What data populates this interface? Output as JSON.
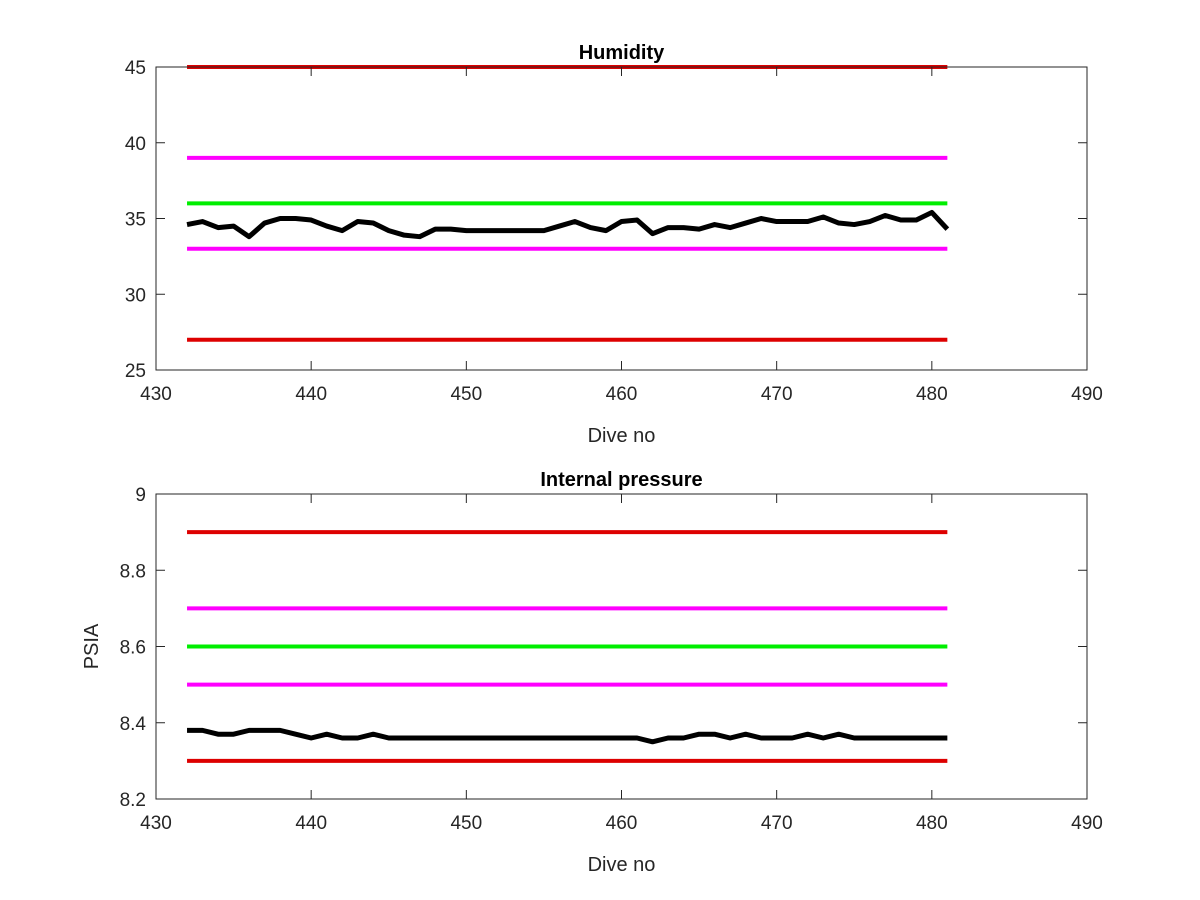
{
  "chart_data": [
    {
      "type": "line",
      "title": "Humidity",
      "xlabel": "Dive no",
      "ylabel": "",
      "xlim": [
        430,
        490
      ],
      "ylim": [
        25,
        45
      ],
      "xticks": [
        "430",
        "440",
        "450",
        "460",
        "470",
        "480",
        "490"
      ],
      "yticks": [
        "25",
        "30",
        "35",
        "40",
        "45"
      ],
      "grid": false,
      "series": [
        {
          "color": "#dd0000",
          "x": [
            432,
            481
          ],
          "y": [
            45,
            45
          ]
        },
        {
          "color": "#ff00ff",
          "x": [
            432,
            481
          ],
          "y": [
            39,
            39
          ]
        },
        {
          "color": "#00ee00",
          "x": [
            432,
            481
          ],
          "y": [
            36,
            36
          ]
        },
        {
          "color": "#ff00ff",
          "x": [
            432,
            481
          ],
          "y": [
            33,
            33
          ]
        },
        {
          "color": "#dd0000",
          "x": [
            432,
            481
          ],
          "y": [
            27,
            27
          ]
        },
        {
          "color": "#000000",
          "x": [
            432,
            433,
            434,
            435,
            436,
            437,
            438,
            439,
            440,
            441,
            442,
            443,
            444,
            445,
            446,
            447,
            448,
            449,
            450,
            451,
            452,
            453,
            454,
            455,
            456,
            457,
            458,
            459,
            460,
            461,
            462,
            463,
            464,
            465,
            466,
            467,
            468,
            469,
            470,
            471,
            472,
            473,
            474,
            475,
            476,
            477,
            478,
            479,
            480,
            481
          ],
          "y": [
            34.6,
            34.8,
            34.4,
            34.5,
            33.8,
            34.7,
            35.0,
            35.0,
            34.9,
            34.5,
            34.2,
            34.8,
            34.7,
            34.2,
            33.9,
            33.8,
            34.3,
            34.3,
            34.2,
            34.2,
            34.2,
            34.2,
            34.2,
            34.2,
            34.5,
            34.8,
            34.4,
            34.2,
            34.8,
            34.9,
            34.0,
            34.4,
            34.4,
            34.3,
            34.6,
            34.4,
            34.7,
            35.0,
            34.8,
            34.8,
            34.8,
            35.1,
            34.7,
            34.6,
            34.8,
            35.2,
            34.9,
            34.9,
            35.4,
            34.3
          ]
        }
      ]
    },
    {
      "type": "line",
      "title": "Internal pressure",
      "xlabel": "Dive no",
      "ylabel": "PSIA",
      "xlim": [
        430,
        490
      ],
      "ylim": [
        8.2,
        9
      ],
      "xticks": [
        "430",
        "440",
        "450",
        "460",
        "470",
        "480",
        "490"
      ],
      "yticks": [
        "8.2",
        "8.4",
        "8.6",
        "8.8",
        "9"
      ],
      "grid": false,
      "series": [
        {
          "color": "#dd0000",
          "x": [
            432,
            481
          ],
          "y": [
            8.9,
            8.9
          ]
        },
        {
          "color": "#ff00ff",
          "x": [
            432,
            481
          ],
          "y": [
            8.7,
            8.7
          ]
        },
        {
          "color": "#00ee00",
          "x": [
            432,
            481
          ],
          "y": [
            8.6,
            8.6
          ]
        },
        {
          "color": "#ff00ff",
          "x": [
            432,
            481
          ],
          "y": [
            8.5,
            8.5
          ]
        },
        {
          "color": "#dd0000",
          "x": [
            432,
            481
          ],
          "y": [
            8.3,
            8.3
          ]
        },
        {
          "color": "#000000",
          "x": [
            432,
            433,
            434,
            435,
            436,
            437,
            438,
            439,
            440,
            441,
            442,
            443,
            444,
            445,
            446,
            447,
            448,
            449,
            450,
            451,
            452,
            453,
            454,
            455,
            456,
            457,
            458,
            459,
            460,
            461,
            462,
            463,
            464,
            465,
            466,
            467,
            468,
            469,
            470,
            471,
            472,
            473,
            474,
            475,
            476,
            477,
            478,
            479,
            480,
            481
          ],
          "y": [
            8.38,
            8.38,
            8.37,
            8.37,
            8.38,
            8.38,
            8.38,
            8.37,
            8.36,
            8.37,
            8.36,
            8.36,
            8.37,
            8.36,
            8.36,
            8.36,
            8.36,
            8.36,
            8.36,
            8.36,
            8.36,
            8.36,
            8.36,
            8.36,
            8.36,
            8.36,
            8.36,
            8.36,
            8.36,
            8.36,
            8.35,
            8.36,
            8.36,
            8.37,
            8.37,
            8.36,
            8.37,
            8.36,
            8.36,
            8.36,
            8.37,
            8.36,
            8.37,
            8.36,
            8.36,
            8.36,
            8.36,
            8.36,
            8.36,
            8.36
          ]
        }
      ]
    }
  ]
}
